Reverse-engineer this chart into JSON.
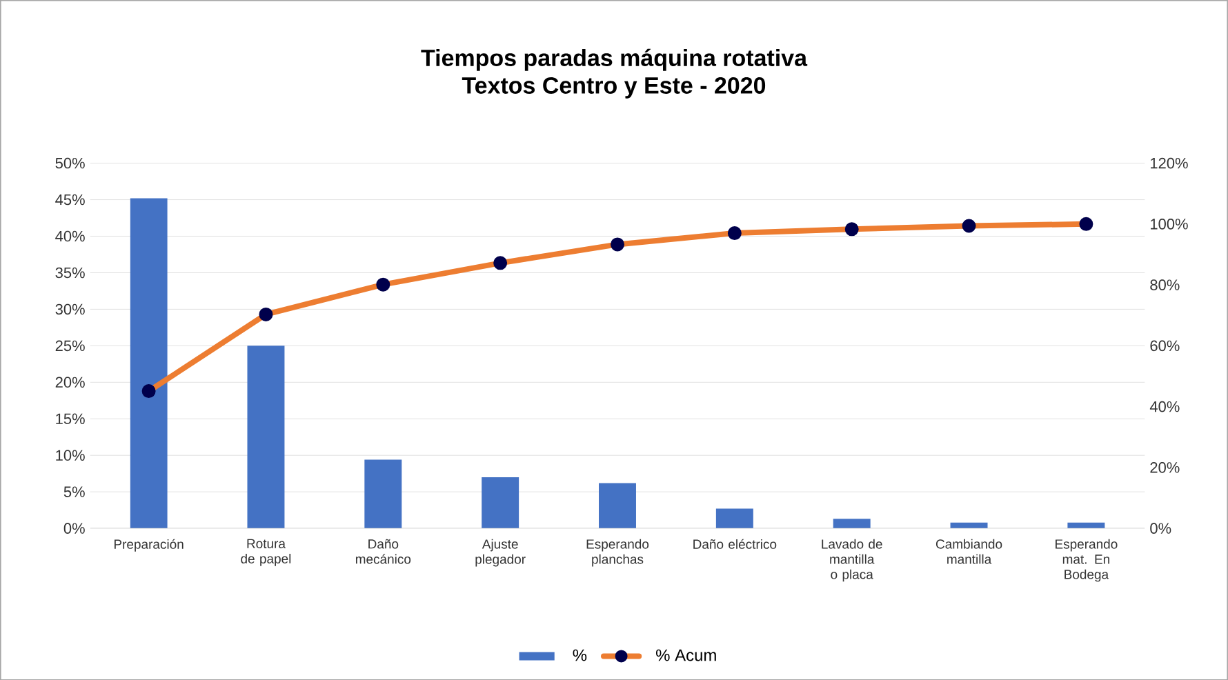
{
  "chart_data": {
    "type": "bar",
    "title": "Tiempos paradas máquina rotativa",
    "subtitle": "Textos Centro y Este - 2020",
    "categories": [
      "Preparación",
      "Rotura de papel",
      "Daño mecánico",
      "Ajuste plegador",
      "Esperando planchas",
      "Daño eléctrico",
      "Lavado de mantilla o placa",
      "Cambiando mantilla",
      "Esperando mat. En Bodega"
    ],
    "series": [
      {
        "name": "%",
        "color": "#4472c4",
        "values": [
          45.2,
          25.0,
          9.4,
          7.0,
          6.2,
          2.7,
          1.3,
          0.8,
          0.8
        ]
      },
      {
        "name": "% Acum",
        "color": "#ed7d31",
        "type": "line",
        "axis": "y2",
        "marker": "circle",
        "values": [
          45.1,
          70.3,
          80.1,
          87.2,
          93.3,
          97.0,
          98.3,
          99.4,
          100
        ]
      }
    ],
    "ylim": [
      0,
      50
    ],
    "yticks": [
      {
        "value": 0,
        "label": "0%"
      },
      {
        "value": 5,
        "label": "5%"
      },
      {
        "value": 10,
        "label": "10%"
      },
      {
        "value": 15,
        "label": "15%"
      },
      {
        "value": 20,
        "label": "20%"
      },
      {
        "value": 25,
        "label": "25%"
      },
      {
        "value": 30,
        "label": "30%"
      },
      {
        "value": 35,
        "label": "35%"
      },
      {
        "value": 40,
        "label": "40%"
      },
      {
        "value": 45,
        "label": "45%"
      },
      {
        "value": 50,
        "label": "50%"
      }
    ],
    "y2lim": [
      0,
      120
    ],
    "y2ticks": [
      {
        "value": 0,
        "label": "0%"
      },
      {
        "value": 20,
        "label": "20%"
      },
      {
        "value": 40,
        "label": "40%"
      },
      {
        "value": 60,
        "label": "60%"
      },
      {
        "value": 80,
        "label": "80%"
      },
      {
        "value": 100,
        "label": "100%"
      },
      {
        "value": 120,
        "label": "120%"
      }
    ],
    "grid": "y",
    "legend": "bottom"
  }
}
